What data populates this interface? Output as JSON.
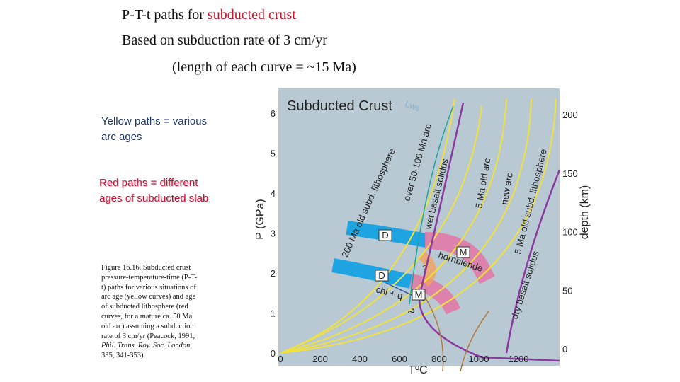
{
  "slide": {
    "title": {
      "prefix": "P-T-t paths for ",
      "highlight": "subducted crust"
    },
    "subtitle": "Based on subduction rate of 3 cm/yr",
    "note": "(length of each curve = ~15 Ma)",
    "yellow_note": [
      "Yellow paths = various",
      "arc ages"
    ],
    "red_note": [
      "Red paths = different",
      "ages of subducted slab"
    ],
    "caption": [
      "Figure 16.16. Subducted crust",
      "pressure-temperature-time (P-T-",
      "t) paths for various situations of",
      "arc age (yellow curves) and age",
      "of subducted lithosphere (red",
      "curves, for a mature ca. 50 Ma",
      "old arc) assuming a subduction",
      "rate of 3 cm/yr (Peacock, 1991,",
      "Phil. Trans. Roy. Soc. London,",
      "335, 341-353)."
    ]
  },
  "figure": {
    "title": "Subducted Crust",
    "x_label": "TºC",
    "y_label": "P (GPa)",
    "y2_label": "depth (km)",
    "x_ticks": [
      0,
      200,
      400,
      600,
      800,
      1000,
      1200
    ],
    "y_ticks": [
      0,
      1,
      2,
      3,
      4,
      5,
      6
    ],
    "y2_ticks": [
      0,
      50,
      100,
      150,
      200
    ],
    "labels": {
      "lws": "Lws",
      "old_lith": "200 Ma old subd. lithosphere",
      "mature_arc": "over 50-100 Ma arc",
      "wet_solidus": "wet basalt solidus",
      "old_arc": "5 Ma old arc",
      "new_arc": "new arc",
      "young_lith": "5 Ma old subd. lithosphere",
      "dry_solidus": "dry basalt solidus",
      "d1": "D",
      "d2": "D",
      "m1": "M",
      "m2": "M",
      "hornblende": "hornblende",
      "chl_q": "chl + q",
      "q1": "?",
      "q2": "?"
    }
  }
}
